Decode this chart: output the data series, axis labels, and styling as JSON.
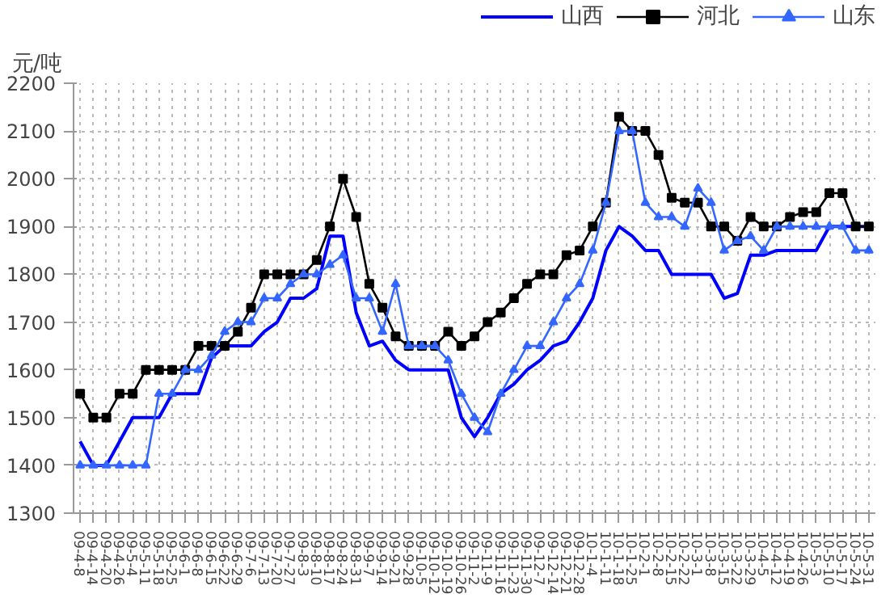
{
  "chart_data": {
    "type": "line",
    "ylabel": "元/吨",
    "categories": [
      "09-4-8",
      "09-4-14",
      "09-4-20",
      "09-4-26",
      "09-5-4",
      "09-5-11",
      "09-5-18",
      "09-5-25",
      "09-6-1",
      "09-6-8",
      "09-6-15",
      "09-6-22",
      "09-6-29",
      "09-7-6",
      "09-7-13",
      "09-7-20",
      "09-7-27",
      "09-8-3",
      "09-8-10",
      "09-8-17",
      "09-8-24",
      "09-8-31",
      "09-9-7",
      "09-9-14",
      "09-9-21",
      "09-9-28",
      "09-10-5",
      "09-10-12",
      "09-10-19",
      "09-10-26",
      "09-11-2",
      "09-11-9",
      "09-11-16",
      "09-11-23",
      "09-11-30",
      "09-12-7",
      "09-12-14",
      "09-12-21",
      "09-12-28",
      "10-1-4",
      "10-1-11",
      "10-1-18",
      "10-1-25",
      "10-2-1",
      "10-2-8",
      "10-2-15",
      "10-2-22",
      "10-3-1",
      "10-3-8",
      "10-3-15",
      "10-3-22",
      "10-3-29",
      "10-4-5",
      "10-4-12",
      "10-4-19",
      "10-4-26",
      "10-5-3",
      "10-5-10",
      "10-5-17",
      "10-5-24",
      "10-5-31"
    ],
    "series": [
      {
        "name": "山西",
        "color": "#0000ff",
        "marker": "none",
        "values": [
          1450,
          1400,
          1400,
          1450,
          1500,
          1500,
          1500,
          1550,
          1550,
          1550,
          1625,
          1650,
          1650,
          1650,
          1680,
          1700,
          1750,
          1750,
          1770,
          1880,
          1880,
          1720,
          1650,
          1660,
          1620,
          1600,
          1600,
          1600,
          1600,
          1500,
          1460,
          1500,
          1550,
          1570,
          1600,
          1620,
          1650,
          1660,
          1700,
          1750,
          1850,
          1900,
          1880,
          1850,
          1850,
          1800,
          1800,
          1800,
          1800,
          1750,
          1760,
          1840,
          1840,
          1850,
          1850,
          1850,
          1850,
          1900,
          1900,
          1900,
          1900
        ]
      },
      {
        "name": "河北",
        "color": "#000000",
        "marker": "square",
        "values": [
          1550,
          1500,
          1500,
          1550,
          1550,
          1600,
          1600,
          1600,
          1600,
          1650,
          1650,
          1650,
          1680,
          1730,
          1800,
          1800,
          1800,
          1800,
          1830,
          1900,
          2000,
          1920,
          1780,
          1730,
          1670,
          1650,
          1650,
          1650,
          1680,
          1650,
          1670,
          1700,
          1720,
          1750,
          1780,
          1800,
          1800,
          1840,
          1850,
          1900,
          1950,
          2130,
          2100,
          2100,
          2050,
          1960,
          1950,
          1950,
          1900,
          1900,
          1870,
          1920,
          1900,
          1900,
          1920,
          1930,
          1930,
          1970,
          1970,
          1900,
          1900
        ]
      },
      {
        "name": "山东",
        "color": "#3366ff",
        "marker": "triangle",
        "values": [
          1400,
          1400,
          1400,
          1400,
          1400,
          1400,
          1550,
          1550,
          1600,
          1600,
          1630,
          1680,
          1700,
          1700,
          1750,
          1750,
          1780,
          1800,
          1800,
          1820,
          1840,
          1750,
          1750,
          1680,
          1780,
          1650,
          1650,
          1650,
          1620,
          1550,
          1500,
          1470,
          1550,
          1600,
          1650,
          1650,
          1700,
          1750,
          1780,
          1850,
          1950,
          2100,
          2100,
          1950,
          1920,
          1920,
          1900,
          1980,
          1950,
          1850,
          1870,
          1880,
          1850,
          1900,
          1900,
          1900,
          1900,
          1900,
          1900,
          1850,
          1850
        ]
      }
    ],
    "ylim": [
      1300,
      2200
    ],
    "yticks": [
      1300,
      1400,
      1500,
      1600,
      1700,
      1800,
      1900,
      2000,
      2100,
      2200
    ],
    "grid": true,
    "legend": "top right",
    "line_style": "solid"
  }
}
